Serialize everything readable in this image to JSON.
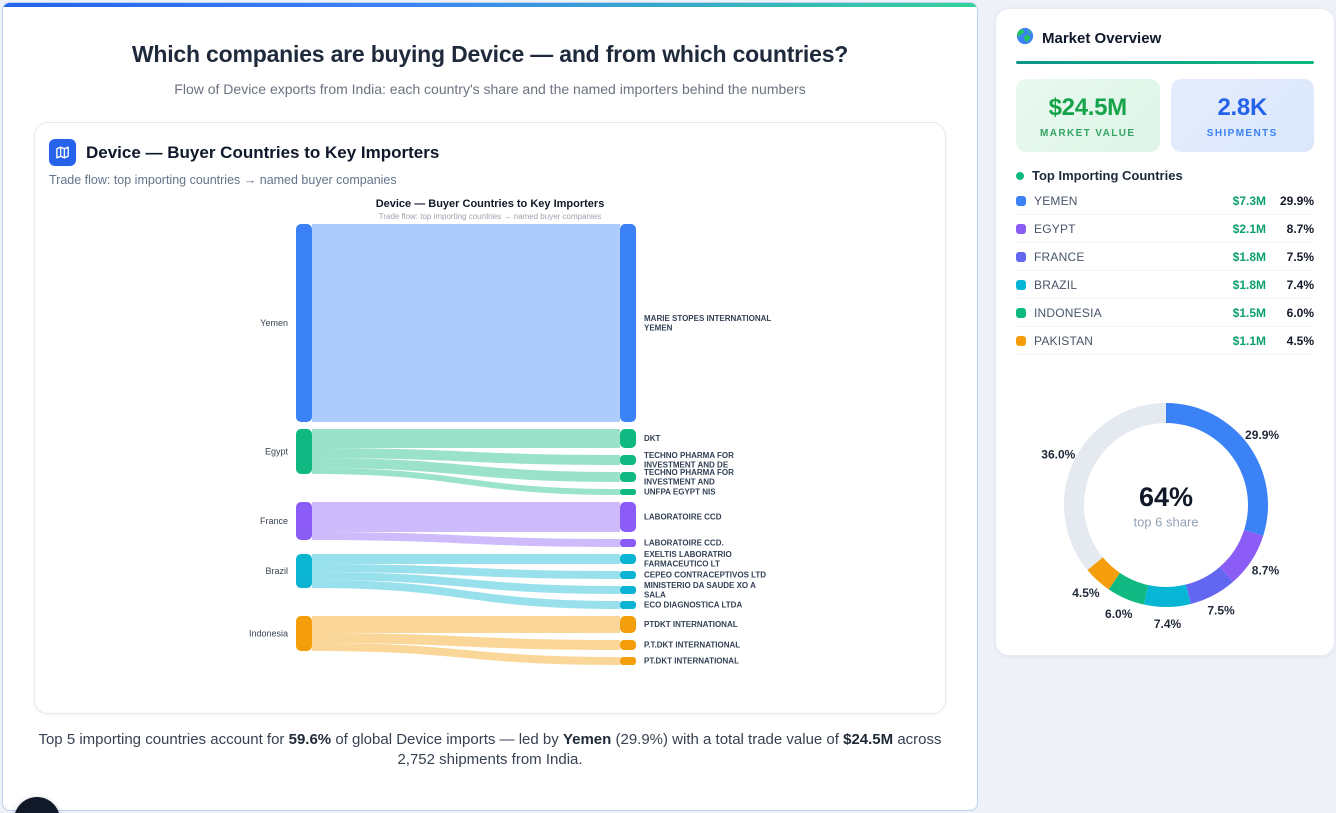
{
  "page": {
    "title": "Which companies are buying Device — and from which countries?",
    "subtitle": "Flow of Device exports from India: each country's share and the named importers behind the numbers"
  },
  "chart_card": {
    "title": "Device — Buyer Countries to Key Importers",
    "subtitle": "Trade flow: top importing countries → named buyer companies"
  },
  "chart_data": [
    {
      "type": "sankey",
      "title": "Device — Buyer Countries to Key Importers",
      "subtitle": "Trade flow: top importing countries → named buyer companies",
      "units": "relative flow size (approx., estimated from rendered band heights)",
      "sources": [
        {
          "name": "Yemen",
          "color": "#3b82f6"
        },
        {
          "name": "Egypt",
          "color": "#10b981"
        },
        {
          "name": "France",
          "color": "#8b5cf6"
        },
        {
          "name": "Brazil",
          "color": "#0cb4d4"
        },
        {
          "name": "Indonesia",
          "color": "#f59e0b"
        }
      ],
      "targets": [
        {
          "lines": [
            "MARIE STOPES INTERNATIONAL",
            "YEMEN"
          ],
          "source": "Yemen",
          "value": 198
        },
        {
          "lines": [
            "DKT"
          ],
          "source": "Egypt",
          "value": 19
        },
        {
          "lines": [
            "TECHNO PHARMA FOR",
            "INVESTMENT AND DE"
          ],
          "source": "Egypt",
          "value": 10
        },
        {
          "lines": [
            "TECHNO PHARMA FOR",
            "INVESTMENT AND"
          ],
          "source": "Egypt",
          "value": 10
        },
        {
          "lines": [
            "UNFPA EGYPT NIS"
          ],
          "source": "Egypt",
          "value": 6
        },
        {
          "lines": [
            "LABORATOIRE CCD"
          ],
          "source": "France",
          "value": 30
        },
        {
          "lines": [
            "LABORATOIRE CCD."
          ],
          "source": "France",
          "value": 8
        },
        {
          "lines": [
            "EXELTIS LABORATRIO",
            "FARMACEUTICO LT"
          ],
          "source": "Brazil",
          "value": 10
        },
        {
          "lines": [
            "CEPEO CONTRACEPTIVOS LTD"
          ],
          "source": "Brazil",
          "value": 8
        },
        {
          "lines": [
            "MINISTERIO DA SAUDE XO A",
            "SALA"
          ],
          "source": "Brazil",
          "value": 8
        },
        {
          "lines": [
            "ECO DIAGNOSTICA LTDA"
          ],
          "source": "Brazil",
          "value": 8
        },
        {
          "lines": [
            "PTDKT INTERNATIONAL"
          ],
          "source": "Indonesia",
          "value": 17
        },
        {
          "lines": [
            "P.T.DKT INTERNATIONAL"
          ],
          "source": "Indonesia",
          "value": 10
        },
        {
          "lines": [
            "PT.DKT INTERNATIONAL"
          ],
          "source": "Indonesia",
          "value": 8
        }
      ]
    },
    {
      "type": "donut",
      "center_value": "64%",
      "center_label": "top 6 share",
      "segments": [
        {
          "label": "YEMEN",
          "pct": 29.9,
          "color": "#3b82f6"
        },
        {
          "label": "EGYPT",
          "pct": 8.7,
          "color": "#8b5cf6"
        },
        {
          "label": "FRANCE",
          "pct": 7.5,
          "color": "#6366f1"
        },
        {
          "label": "BRAZIL",
          "pct": 7.4,
          "color": "#06b6d4"
        },
        {
          "label": "INDONESIA",
          "pct": 6.0,
          "color": "#10b981"
        },
        {
          "label": "PAKISTAN",
          "pct": 4.5,
          "color": "#f59e0b"
        },
        {
          "label": "Others",
          "pct": 36.0,
          "color": "#e5e9f0"
        }
      ]
    }
  ],
  "sidebar": {
    "title": "Market Overview",
    "stats": [
      {
        "value": "$24.5M",
        "label": "MARKET VALUE"
      },
      {
        "value": "2.8K",
        "label": "SHIPMENTS"
      }
    ],
    "section_title": "Top Importing Countries",
    "countries": [
      {
        "name": "YEMEN",
        "value": "$7.3M",
        "pct": "29.9%",
        "color": "#3b82f6"
      },
      {
        "name": "EGYPT",
        "value": "$2.1M",
        "pct": "8.7%",
        "color": "#8b5cf6"
      },
      {
        "name": "FRANCE",
        "value": "$1.8M",
        "pct": "7.5%",
        "color": "#6366f1"
      },
      {
        "name": "BRAZIL",
        "value": "$1.8M",
        "pct": "7.4%",
        "color": "#06b6d4"
      },
      {
        "name": "INDONESIA",
        "value": "$1.5M",
        "pct": "6.0%",
        "color": "#10b981"
      },
      {
        "name": "PAKISTAN",
        "value": "$1.1M",
        "pct": "4.5%",
        "color": "#f59e0b"
      }
    ]
  },
  "summary": {
    "p1": "Top 5 importing countries account for ",
    "b1": "59.6%",
    "p2": " of global Device imports — led by ",
    "b2": "Yemen",
    "p3": " (29.9%) with a total trade value of ",
    "b3": "$24.5M",
    "p4": " across 2,752 shipments from India."
  }
}
